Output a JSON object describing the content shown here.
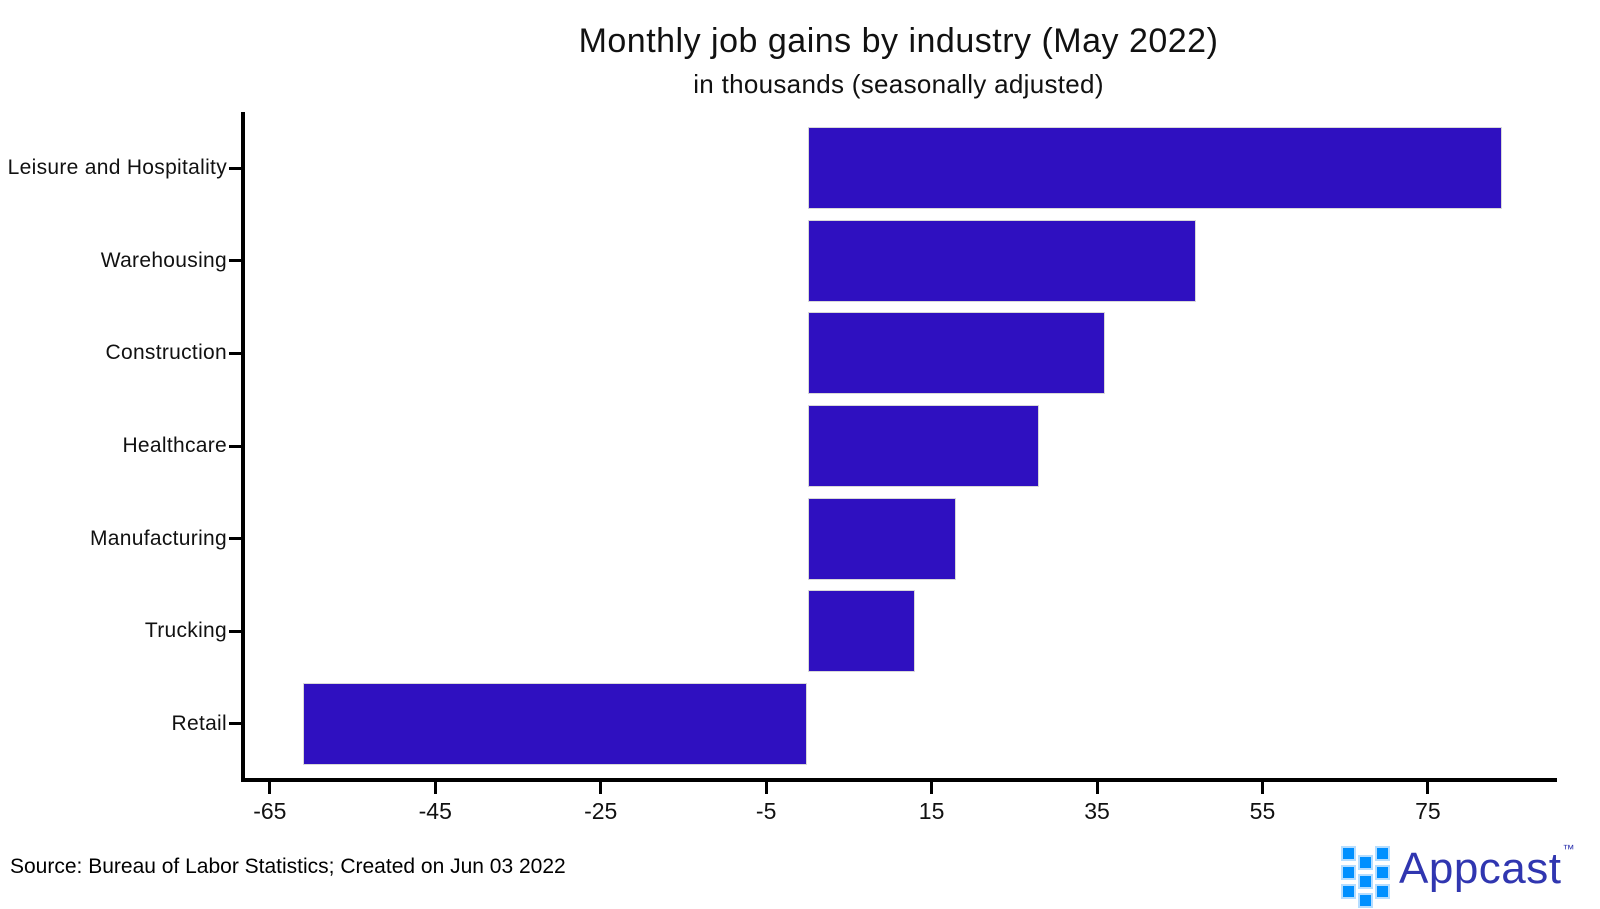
{
  "chart_data": {
    "type": "bar",
    "orientation": "horizontal",
    "title": "Monthly job gains by industry (May 2022)",
    "subtitle": "in thousands (seasonally adjusted)",
    "categories": [
      "Leisure and Hospitality",
      "Warehousing",
      "Construction",
      "Healthcare",
      "Manufacturing",
      "Trucking",
      "Retail"
    ],
    "values": [
      84,
      47,
      36,
      28,
      18,
      13,
      -61
    ],
    "x_ticks": [
      -65,
      -45,
      -25,
      -5,
      15,
      35,
      55,
      75
    ],
    "xlim": [
      -68,
      90
    ],
    "bar_color": "#2F10C0",
    "axis_color": "#000000",
    "grid": false,
    "legend": false
  },
  "footer": {
    "source_text": "Source: Bureau of Labor Statistics; Created on Jun 03 2022",
    "brand": {
      "name": "Appcast",
      "trademark": "™",
      "text_color": "#3036B0",
      "mark_color": "#0090FF"
    }
  }
}
